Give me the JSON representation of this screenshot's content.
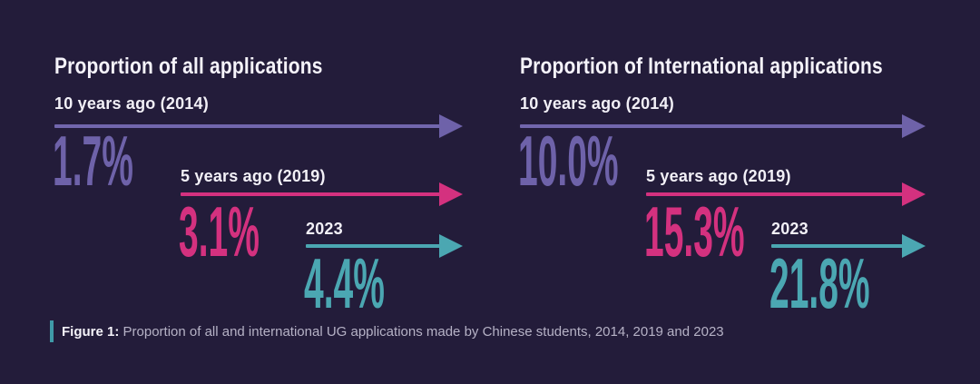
{
  "colors": {
    "background": "#231c3a",
    "purple": "#6e62a9",
    "pink": "#d4317f",
    "teal": "#4ba7b2",
    "title_text": "#f5f3fa",
    "caption_text": "#b6b2c6",
    "caption_bar": "#3f9aa8"
  },
  "panels": [
    {
      "title": "Proportion of all applications",
      "rows": [
        {
          "label": "10 years ago (2014)",
          "value": "1.7%",
          "color": "#6e62a9"
        },
        {
          "label": "5 years ago (2019)",
          "value": "3.1%",
          "color": "#d4317f"
        },
        {
          "label": "2023",
          "value": "4.4%",
          "color": "#4ba7b2"
        }
      ]
    },
    {
      "title": "Proportion of International applications",
      "rows": [
        {
          "label": "10 years ago (2014)",
          "value": "10.0%",
          "color": "#6e62a9"
        },
        {
          "label": "5 years ago (2019)",
          "value": "15.3%",
          "color": "#d4317f"
        },
        {
          "label": "2023",
          "value": "21.8%",
          "color": "#4ba7b2"
        }
      ]
    }
  ],
  "caption": {
    "prefix": "Figure 1: ",
    "text": "Proportion of all and international UG applications made by Chinese students, 2014, 2019 and 2023"
  },
  "chart_data": {
    "type": "bar",
    "layout_hint": "two side-by-side arrow infographics, one arrow per year, percentage label under each arrow",
    "categories": [
      "10 years ago (2014)",
      "5 years ago (2019)",
      "2023"
    ],
    "series": [
      {
        "name": "Proportion of all applications",
        "values": [
          1.7,
          3.1,
          4.4
        ],
        "unit": "%"
      },
      {
        "name": "Proportion of International applications",
        "values": [
          10.0,
          15.3,
          21.8
        ],
        "unit": "%"
      }
    ],
    "title": "Figure 1: Proportion of all and international UG applications made by Chinese students, 2014, 2019 and 2023",
    "xlabel": "",
    "ylabel": "",
    "legend_position": "none",
    "grid": false,
    "series_colors": [
      "#6e62a9",
      "#d4317f",
      "#4ba7b2"
    ]
  }
}
